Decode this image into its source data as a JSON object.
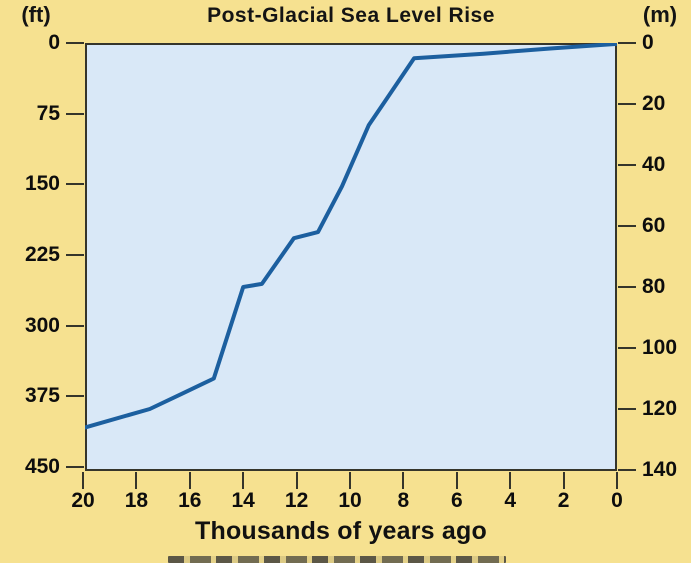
{
  "chart_data": {
    "type": "line",
    "title": "Post-Glacial Sea Level Rise",
    "xlabel": "Thousands of years ago",
    "grid": false,
    "legend": "none",
    "left_axis": {
      "unit_label": "(ft)",
      "ticks": [
        0,
        75,
        150,
        225,
        300,
        375,
        450
      ],
      "range": [
        0,
        450
      ],
      "meaning": "feet below present sea level, increasing downward"
    },
    "right_axis": {
      "unit_label": "(m)",
      "ticks": [
        0,
        20,
        40,
        60,
        80,
        100,
        120,
        140
      ],
      "range": [
        0,
        140
      ],
      "meaning": "meters below present sea level, increasing downward"
    },
    "x_axis": {
      "ticks": [
        20,
        18,
        16,
        14,
        12,
        10,
        8,
        6,
        4,
        2,
        0
      ],
      "range": [
        20,
        0
      ],
      "meaning": "thousands of years ago, decreasing to the right"
    },
    "series": [
      {
        "name": "sea-level-curve",
        "points_kya_vs_m_below_present": [
          [
            19.9,
            126
          ],
          [
            17.5,
            120
          ],
          [
            16.3,
            115
          ],
          [
            15.1,
            110
          ],
          [
            14.0,
            80
          ],
          [
            13.3,
            79
          ],
          [
            12.1,
            64
          ],
          [
            11.2,
            62
          ],
          [
            10.3,
            47
          ],
          [
            9.3,
            27
          ],
          [
            7.6,
            5
          ],
          [
            5.0,
            3.5
          ],
          [
            2.5,
            1.8
          ],
          [
            0,
            0.3
          ]
        ]
      }
    ]
  },
  "colors": {
    "background": "#f6e190",
    "plot_background": "#d9e8f7",
    "curve": "#1c5f9f",
    "axis": "#35352b",
    "text": "#111111"
  }
}
